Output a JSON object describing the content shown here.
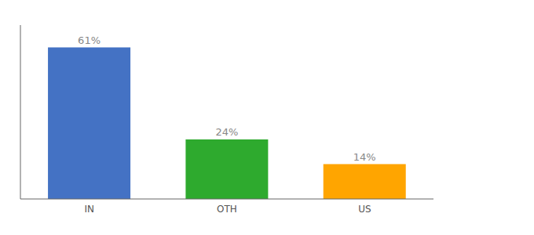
{
  "chart_data": {
    "type": "bar",
    "categories": [
      "IN",
      "OTH",
      "US"
    ],
    "values": [
      61,
      24,
      14
    ],
    "value_labels": [
      "61%",
      "24%",
      "14%"
    ],
    "colors": [
      "#4472C4",
      "#2EAA2E",
      "#FFA500"
    ],
    "ylim": [
      0,
      70
    ],
    "data_labels": true,
    "tick_labels": "x",
    "grid": false
  }
}
